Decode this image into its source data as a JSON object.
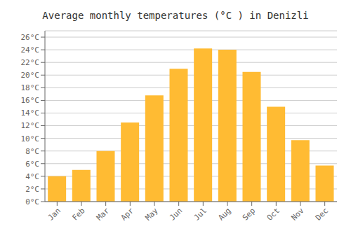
{
  "chart_data": {
    "type": "bar",
    "title": "Average monthly temperatures (°C ) in Denizli",
    "categories": [
      "Jan",
      "Feb",
      "Mar",
      "Apr",
      "May",
      "Jun",
      "Jul",
      "Aug",
      "Sep",
      "Oct",
      "Nov",
      "Dec"
    ],
    "values": [
      4.0,
      5.0,
      8.0,
      12.5,
      16.8,
      21.0,
      24.2,
      24.0,
      20.5,
      15.0,
      9.7,
      5.7
    ],
    "color": "#FFBB33",
    "ylim": [
      0,
      27
    ],
    "yticks": [
      {
        "value": 0,
        "label": "0°C"
      },
      {
        "value": 2,
        "label": "2°C"
      },
      {
        "value": 4,
        "label": "4°C"
      },
      {
        "value": 6,
        "label": "6°C"
      },
      {
        "value": 8,
        "label": "8°C"
      },
      {
        "value": 10,
        "label": "10°C"
      },
      {
        "value": 12,
        "label": "12°C"
      },
      {
        "value": 14,
        "label": "14°C"
      },
      {
        "value": 16,
        "label": "16°C"
      },
      {
        "value": 18,
        "label": "18°C"
      },
      {
        "value": 20,
        "label": "20°C"
      },
      {
        "value": 22,
        "label": "22°C"
      },
      {
        "value": 24,
        "label": "24°C"
      },
      {
        "value": 26,
        "label": "26°C"
      }
    ],
    "grid": true
  }
}
